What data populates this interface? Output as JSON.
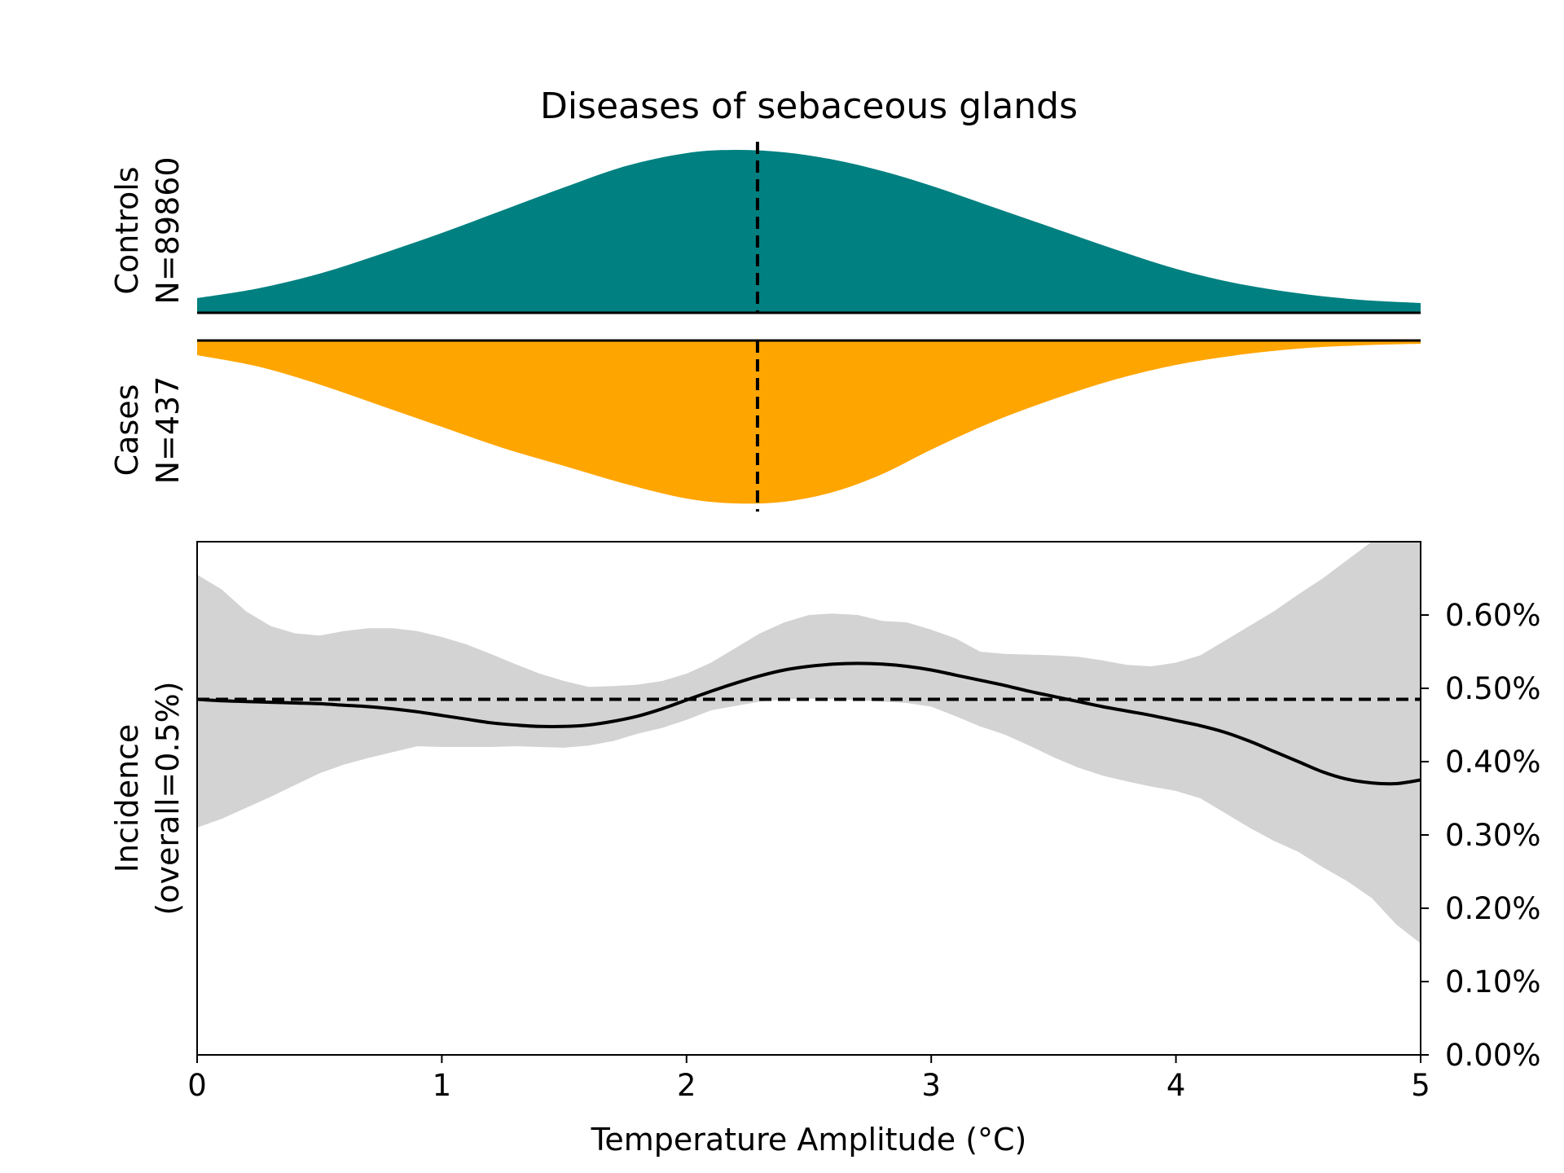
{
  "title": "Diseases of sebaceous glands",
  "colors": {
    "controls_fill": "#008080",
    "cases_fill": "#FFA500",
    "ci_band": "#D3D3D3",
    "line": "#000000"
  },
  "chart_data": [
    {
      "type": "area",
      "panel": "controls-density",
      "ylabel_line1": "Controls",
      "ylabel_line2": "N=89860",
      "xlim": [
        0,
        5
      ],
      "median_marker": 2.29,
      "x": [
        0.0,
        0.25,
        0.5,
        0.75,
        1.0,
        1.25,
        1.5,
        1.75,
        2.0,
        2.2,
        2.4,
        2.6,
        2.8,
        3.0,
        3.25,
        3.5,
        3.75,
        4.0,
        4.25,
        4.5,
        4.75,
        5.0
      ],
      "density": [
        0.09,
        0.15,
        0.24,
        0.36,
        0.49,
        0.63,
        0.77,
        0.9,
        0.98,
        1.0,
        0.985,
        0.94,
        0.87,
        0.78,
        0.65,
        0.52,
        0.39,
        0.27,
        0.18,
        0.12,
        0.08,
        0.06
      ]
    },
    {
      "type": "area",
      "panel": "cases-density",
      "ylabel_line1": "Cases",
      "ylabel_line2": "N=437",
      "xlim": [
        0,
        5
      ],
      "median_marker": 2.29,
      "x": [
        0.0,
        0.25,
        0.5,
        0.75,
        1.0,
        1.25,
        1.5,
        1.75,
        2.0,
        2.2,
        2.4,
        2.6,
        2.8,
        3.0,
        3.25,
        3.5,
        3.75,
        4.0,
        4.25,
        4.5,
        4.75,
        5.0
      ],
      "density": [
        0.09,
        0.16,
        0.27,
        0.4,
        0.53,
        0.66,
        0.77,
        0.88,
        0.97,
        1.0,
        0.99,
        0.93,
        0.82,
        0.67,
        0.5,
        0.36,
        0.24,
        0.15,
        0.09,
        0.05,
        0.03,
        0.02
      ]
    },
    {
      "type": "line",
      "panel": "incidence",
      "xlabel": "Temperature Amplitude (°C)",
      "ylabel_line1": "Incidence",
      "ylabel_line2": "(overall=0.5%)",
      "xlim": [
        0,
        5
      ],
      "ylim": [
        0.0,
        0.7
      ],
      "x_ticks": [
        "0",
        "1",
        "2",
        "3",
        "4",
        "5"
      ],
      "y_ticks": [
        "0.00%",
        "0.10%",
        "0.20%",
        "0.30%",
        "0.40%",
        "0.50%",
        "0.60%"
      ],
      "overall_rate": 0.485,
      "x": [
        0.0,
        0.1,
        0.2,
        0.3,
        0.4,
        0.5,
        0.6,
        0.7,
        0.8,
        0.9,
        1.0,
        1.1,
        1.2,
        1.3,
        1.4,
        1.5,
        1.6,
        1.7,
        1.8,
        1.9,
        2.0,
        2.1,
        2.2,
        2.3,
        2.4,
        2.5,
        2.6,
        2.7,
        2.8,
        2.9,
        3.0,
        3.1,
        3.2,
        3.3,
        3.4,
        3.5,
        3.6,
        3.7,
        3.8,
        3.9,
        4.0,
        4.1,
        4.2,
        4.3,
        4.4,
        4.5,
        4.6,
        4.7,
        4.8,
        4.9,
        5.0
      ],
      "estimate": [
        0.485,
        0.483,
        0.482,
        0.481,
        0.48,
        0.479,
        0.477,
        0.475,
        0.472,
        0.468,
        0.463,
        0.458,
        0.453,
        0.45,
        0.448,
        0.448,
        0.45,
        0.455,
        0.462,
        0.472,
        0.484,
        0.496,
        0.507,
        0.517,
        0.525,
        0.53,
        0.533,
        0.534,
        0.533,
        0.53,
        0.525,
        0.518,
        0.511,
        0.504,
        0.496,
        0.489,
        0.482,
        0.475,
        0.469,
        0.463,
        0.456,
        0.449,
        0.44,
        0.428,
        0.414,
        0.4,
        0.386,
        0.376,
        0.371,
        0.37,
        0.375
      ],
      "ci_upper": [
        0.655,
        0.635,
        0.605,
        0.585,
        0.575,
        0.572,
        0.578,
        0.582,
        0.582,
        0.578,
        0.57,
        0.56,
        0.547,
        0.533,
        0.52,
        0.51,
        0.502,
        0.503,
        0.505,
        0.51,
        0.52,
        0.535,
        0.555,
        0.575,
        0.59,
        0.6,
        0.602,
        0.6,
        0.592,
        0.59,
        0.58,
        0.568,
        0.55,
        0.547,
        0.546,
        0.545,
        0.543,
        0.538,
        0.532,
        0.53,
        0.535,
        0.545,
        0.565,
        0.585,
        0.605,
        0.628,
        0.65,
        0.675,
        0.7,
        0.7,
        0.7
      ],
      "ci_lower": [
        0.31,
        0.322,
        0.337,
        0.352,
        0.368,
        0.384,
        0.396,
        0.405,
        0.413,
        0.421,
        0.42,
        0.42,
        0.42,
        0.421,
        0.42,
        0.419,
        0.422,
        0.428,
        0.438,
        0.446,
        0.457,
        0.47,
        0.476,
        0.482,
        0.485,
        0.486,
        0.485,
        0.484,
        0.482,
        0.48,
        0.475,
        0.462,
        0.448,
        0.437,
        0.422,
        0.406,
        0.392,
        0.381,
        0.373,
        0.366,
        0.36,
        0.35,
        0.33,
        0.31,
        0.292,
        0.277,
        0.256,
        0.237,
        0.214,
        0.178,
        0.152
      ]
    }
  ]
}
